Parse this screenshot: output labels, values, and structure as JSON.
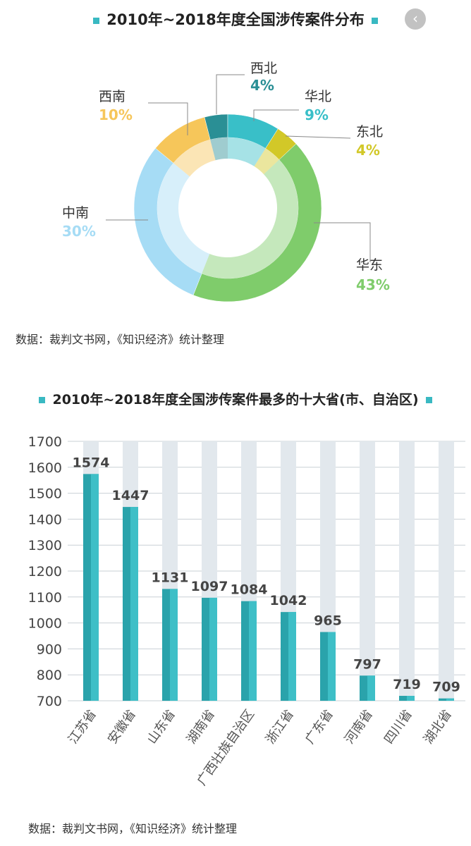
{
  "donut": {
    "title": "2010年~2018年度全国涉传案件分布",
    "source": "数据：裁判文书网，《知识经济》统计整理",
    "chart_data": {
      "type": "pie",
      "labels": [
        "西北",
        "华北",
        "东北",
        "华东",
        "中南",
        "西南"
      ],
      "values": [
        4,
        9,
        4,
        43,
        30,
        10
      ],
      "value_labels": [
        "4%",
        "9%",
        "4%",
        "43%",
        "30%",
        "10%"
      ],
      "colors": [
        "#2a8f95",
        "#39bfc8",
        "#d2c828",
        "#7fcc6b",
        "#a6dcf5",
        "#f6c65a"
      ]
    }
  },
  "bar": {
    "title": "2010年~2018年度全国涉传案件最多的十大省(市、自治区)",
    "source": "数据：裁判文书网，《知识经济》统计整理",
    "chart_data": {
      "type": "bar",
      "categories": [
        "江苏省",
        "安徽省",
        "山东省",
        "湖南省",
        "广西壮族自治区",
        "浙江省",
        "广东省",
        "河南省",
        "四川省",
        "湖北省"
      ],
      "values": [
        1574,
        1447,
        1131,
        1097,
        1084,
        1042,
        965,
        797,
        719,
        709
      ],
      "ylim": [
        700,
        1700
      ],
      "yticks": [
        700,
        800,
        900,
        1000,
        1100,
        1200,
        1300,
        1400,
        1500,
        1600,
        1700
      ],
      "bar_color": "#2aa3ab",
      "track_color": "#e2e8ed"
    }
  }
}
